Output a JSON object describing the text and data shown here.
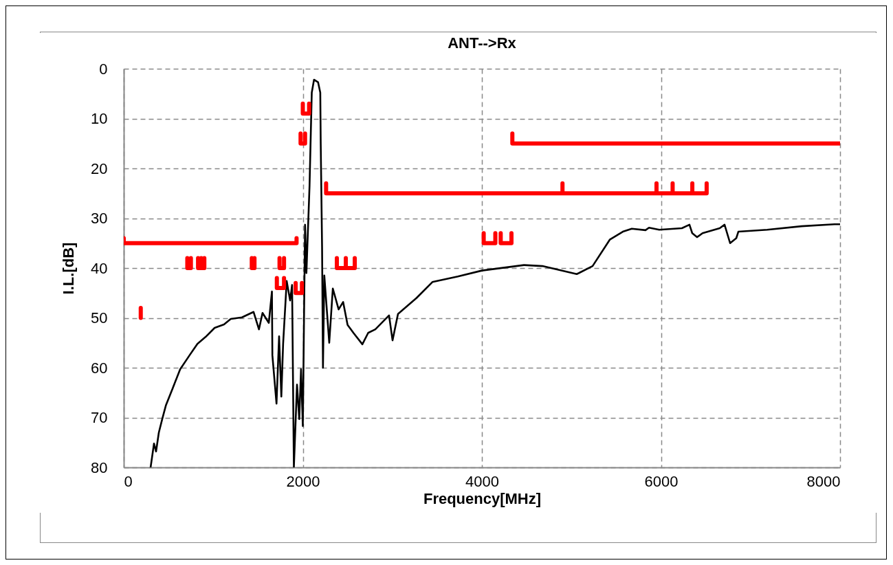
{
  "chart_data": {
    "type": "line",
    "title": "ANT-->Rx",
    "xlabel": "Frequency[MHz]",
    "ylabel": "I.L.[dB]",
    "xlim": [
      0,
      8000
    ],
    "xticks": [
      0,
      2000,
      4000,
      6000,
      8000
    ],
    "ylim": [
      80,
      0
    ],
    "yticks": [
      0,
      10,
      20,
      30,
      40,
      50,
      60,
      70,
      80
    ],
    "grid": true,
    "line_style": "solid",
    "marker": "none",
    "series": [
      {
        "color": "#000000",
        "x": [
          300,
          338,
          361,
          392,
          430,
          470,
          545,
          630,
          735,
          823,
          915,
          1015,
          1120,
          1195,
          1320,
          1450,
          1510,
          1550,
          1620,
          1655,
          1660,
          1706,
          1735,
          1760,
          1780,
          1820,
          1858,
          1880,
          1900,
          1935,
          1960,
          1980,
          2000,
          2025,
          2040,
          2075,
          2100,
          2125,
          2170,
          2195,
          2200,
          2215,
          2225,
          2240,
          2295,
          2335,
          2400,
          2450,
          2500,
          2565,
          2665,
          2730,
          2810,
          2963,
          3002,
          3063,
          3270,
          3447,
          3731,
          4000,
          4470,
          4676,
          5059,
          5083,
          5236,
          5428,
          5574,
          5674,
          5827,
          5866,
          5981,
          6234,
          6318,
          6349,
          6403,
          6464,
          6656,
          6710,
          6772,
          6841,
          6864,
          7186,
          7570,
          7939,
          8000
        ],
        "values": [
          80,
          75.2,
          76.8,
          73,
          70.3,
          67.6,
          64.2,
          60.3,
          57.5,
          55.2,
          53.8,
          52,
          51.3,
          50.2,
          49.9,
          48.8,
          52.3,
          49,
          51,
          44.7,
          57.5,
          67.2,
          53.7,
          65.8,
          55.2,
          42.6,
          46.5,
          43.4,
          80,
          63.4,
          70.3,
          60.3,
          71.7,
          31.3,
          41,
          23.5,
          4.8,
          2.2,
          2.7,
          4.8,
          15.1,
          35.8,
          60,
          41.5,
          55,
          44.1,
          48.3,
          46.8,
          51.4,
          53,
          55.3,
          53,
          52.3,
          49.5,
          54.5,
          49.2,
          46,
          42.8,
          41.7,
          40.5,
          39.4,
          39.6,
          41.2,
          41,
          39.6,
          34.3,
          32.7,
          32.1,
          32.4,
          31.9,
          32.3,
          32,
          31.3,
          33,
          33.8,
          33,
          32,
          31.3,
          35,
          34,
          32.7,
          32.3,
          31.6,
          31.2,
          31.2
        ]
      },
      {
        "color": "#ff0000",
        "x": [
          0,
          0,
          1930,
          1930
        ],
        "values": [
          34,
          35,
          35,
          34
        ]
      },
      {
        "color": "#ff0000",
        "x": [
          2260,
          2260,
          4900,
          4900,
          4900,
          5950,
          5950,
          5950,
          6130,
          6130,
          6130,
          6350,
          6350,
          6350,
          6510,
          6510
        ],
        "values": [
          23,
          25,
          25,
          23,
          25,
          25,
          23,
          25,
          25,
          23,
          25,
          25,
          23,
          25,
          25,
          23
        ]
      },
      {
        "color": "#ff0000",
        "x": [
          4340,
          4340,
          8000
        ],
        "values": [
          13,
          15,
          15
        ]
      },
      {
        "color": "#ff0000",
        "x": [
          190,
          190
        ],
        "values": [
          48,
          50
        ]
      },
      {
        "color": "#ff0000",
        "x": [
          710,
          710,
          750,
          750
        ],
        "values": [
          38,
          40,
          40,
          38
        ]
      },
      {
        "color": "#ff0000",
        "x": [
          830,
          830,
          865,
          865,
          865,
          900,
          900
        ],
        "values": [
          38,
          40,
          40,
          38,
          40,
          40,
          38
        ]
      },
      {
        "color": "#ff0000",
        "x": [
          1430,
          1430,
          1460,
          1460
        ],
        "values": [
          38,
          40,
          40,
          38
        ]
      },
      {
        "color": "#ff0000",
        "x": [
          1740,
          1740,
          1790,
          1790
        ],
        "values": [
          38,
          40,
          40,
          38
        ]
      },
      {
        "color": "#ff0000",
        "x": [
          1710,
          1710,
          1790,
          1790
        ],
        "values": [
          42,
          44,
          44,
          42
        ]
      },
      {
        "color": "#ff0000",
        "x": [
          1920,
          1920,
          1990,
          1990
        ],
        "values": [
          43,
          45,
          45,
          43
        ]
      },
      {
        "color": "#ff0000",
        "x": [
          2000,
          2000,
          2070,
          2070
        ],
        "values": [
          7,
          9,
          9,
          7
        ]
      },
      {
        "color": "#ff0000",
        "x": [
          1975,
          1975,
          2025,
          2025
        ],
        "values": [
          13,
          15,
          15,
          13
        ]
      },
      {
        "color": "#ff0000",
        "x": [
          2380,
          2380,
          2480,
          2480,
          2480,
          2580,
          2580
        ],
        "values": [
          38,
          40,
          40,
          38,
          40,
          40,
          38
        ]
      },
      {
        "color": "#ff0000",
        "x": [
          4020,
          4020,
          4150,
          4150
        ],
        "values": [
          33,
          35,
          35,
          33
        ]
      },
      {
        "color": "#ff0000",
        "x": [
          4210,
          4210,
          4330,
          4330
        ],
        "values": [
          33,
          35,
          35,
          33
        ]
      }
    ]
  }
}
